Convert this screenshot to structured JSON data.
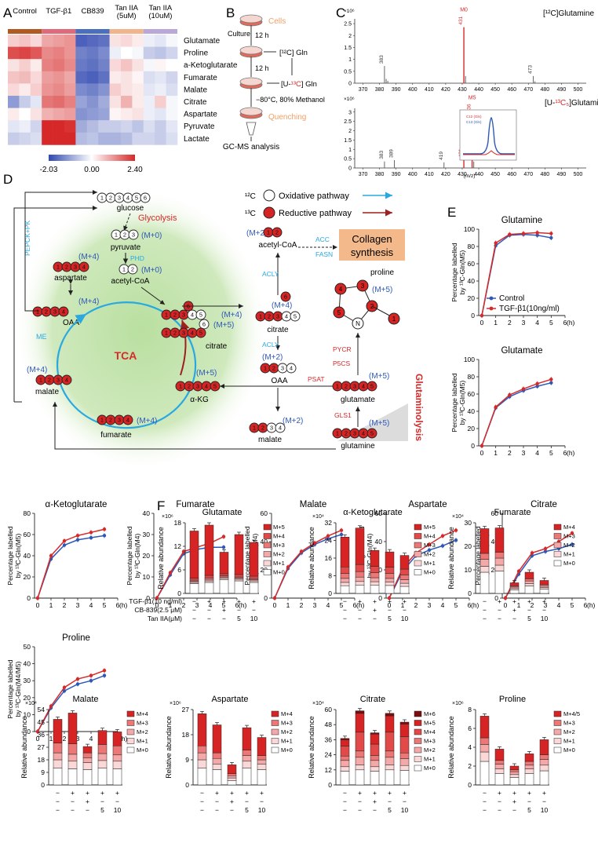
{
  "panels": {
    "A": "A",
    "B": "B",
    "C": "C",
    "D": "D",
    "E": "E",
    "F": "F"
  },
  "colors": {
    "red": "#d62a2a",
    "blue": "#2e58b8",
    "darkred": "#7a1010",
    "cyan": "#29a9e0",
    "orange": "#f0a066",
    "grey": "#b0b0b0"
  },
  "heatmap": {
    "groups": [
      {
        "label": "Control",
        "color": "#b05a22"
      },
      {
        "label": "TGF-β1",
        "color": "#e06a7a"
      },
      {
        "label": "CB839",
        "color": "#4a6fbe"
      },
      {
        "label": "Tan IIA\n(5uM)",
        "color": "#f2b48a"
      },
      {
        "label": "Tan IIA\n(10uM)",
        "color": "#b9a8d8"
      }
    ],
    "rows": [
      "Glutamate",
      "Proline",
      "a-Ketoglutarate",
      "Fumarate",
      "Malate",
      "Citrate",
      "Aspartate",
      "Pyruvate",
      "Lactate"
    ],
    "values": [
      [
        0.5,
        0.6,
        0.4,
        0.9,
        1.0,
        1.1,
        -1.9,
        -1.8,
        -1.7,
        0.3,
        0.4,
        0.2,
        -0.2,
        -0.3,
        -0.1
      ],
      [
        1.8,
        1.9,
        1.7,
        1.2,
        1.3,
        1.1,
        -1.5,
        -1.6,
        -1.4,
        -0.2,
        0.0,
        -0.1,
        -0.6,
        -0.7,
        -0.5
      ],
      [
        0.3,
        0.5,
        0.2,
        1.3,
        1.4,
        1.2,
        -1.6,
        -1.7,
        -1.5,
        0.4,
        0.6,
        0.3,
        -0.1,
        0.1,
        0.0
      ],
      [
        0.6,
        0.7,
        0.4,
        1.0,
        1.1,
        0.9,
        -1.8,
        -1.9,
        -1.7,
        0.2,
        0.3,
        0.1,
        -0.4,
        -0.3,
        -0.5
      ],
      [
        0.4,
        0.2,
        0.5,
        1.1,
        1.2,
        1.0,
        -1.4,
        -1.5,
        -1.3,
        0.5,
        0.3,
        0.2,
        -0.3,
        -0.2,
        -0.4
      ],
      [
        -1.2,
        -0.6,
        -0.3,
        1.4,
        1.5,
        1.3,
        -1.1,
        -1.3,
        -1.0,
        0.3,
        0.8,
        0.2,
        -0.2,
        0.5,
        -0.1
      ],
      [
        0.2,
        0.0,
        0.3,
        0.8,
        0.9,
        1.0,
        -1.3,
        -1.2,
        -1.1,
        0.1,
        0.2,
        0.3,
        -0.2,
        -0.3,
        -0.1
      ],
      [
        -0.3,
        -0.2,
        -0.5,
        2.2,
        2.3,
        2.1,
        -1.0,
        -0.8,
        -0.6,
        -0.6,
        -0.5,
        -0.7,
        -0.4,
        -0.6,
        -0.3
      ],
      [
        -0.6,
        -0.5,
        -0.4,
        2.3,
        2.4,
        2.2,
        -0.8,
        -0.7,
        -0.9,
        -0.9,
        -0.8,
        -0.5,
        -0.5,
        -0.6,
        -0.4
      ]
    ],
    "scale": {
      "min": "-2.03",
      "mid": "0.00",
      "max": "2.40"
    }
  },
  "workflow": {
    "cells": "Cells",
    "culture": "Culture",
    "t1": "12 h",
    "t2": "12 h",
    "gln12": "[¹²C] Gln",
    "gln13_open": "[U-",
    "gln13_iso": "¹³C",
    "gln13_close": "] Gln",
    "freeze": "−80°C, 80% Methanol",
    "quench": "Quenching",
    "analysis": "GC-MS analysis"
  },
  "ms": {
    "scale1": "×10⁶",
    "title1": "[¹²C]Glutamine",
    "scale2": "×10⁶",
    "title2_a": "[U-",
    "title2_b": "¹³C₅",
    "title2_c": "]Glutamine",
    "ticks_y1": [
      "0",
      "0.5",
      "1",
      "1.5",
      "2",
      "2.5"
    ],
    "ticks_y2": [
      "0",
      "0.5",
      "1",
      "1.5",
      "2",
      "2.5",
      "3"
    ],
    "ticks_x": [
      "370",
      "380",
      "390",
      "400",
      "410",
      "420",
      "430",
      "440",
      "450",
      "460",
      "470",
      "480",
      "490",
      "500"
    ],
    "xunit": "(m/z)",
    "peaks1": [
      {
        "mz": 383,
        "h": 0.72,
        "lab": "383"
      },
      {
        "mz": 384,
        "h": 0.18
      },
      {
        "mz": 385,
        "h": 0.1
      },
      {
        "mz": 431,
        "h": 2.35,
        "lab": "431",
        "tag": "M0"
      },
      {
        "mz": 432,
        "h": 0.3
      },
      {
        "mz": 473,
        "h": 0.3,
        "lab": "473"
      },
      {
        "mz": 474,
        "h": 0.08
      }
    ],
    "peaks2": [
      {
        "mz": 383,
        "h": 0.35,
        "lab": "383"
      },
      {
        "mz": 389,
        "h": 0.42,
        "lab": "389"
      },
      {
        "mz": 419,
        "h": 0.3,
        "lab": "419"
      },
      {
        "mz": 431,
        "h": 0.45,
        "lab": "431",
        "tag": "M0"
      },
      {
        "mz": 436,
        "h": 2.85,
        "lab": "436",
        "tag": "M5"
      },
      {
        "mz": 437,
        "h": 0.35
      }
    ],
    "inset_legend": [
      "C12 (Gln)",
      "C13 (Gln)"
    ]
  },
  "pathway": {
    "legend_12c": "¹²C",
    "legend_13c": "¹³C",
    "legend_ox": "Oxidative pathway",
    "legend_red": "Reductive pathway",
    "glucose": "glucose",
    "glycolysis": "Glycolysis",
    "pyruvate": "pyruvate",
    "acetylcoa": "acetyl-CoA",
    "m0a": "(M+0)",
    "m0b": "(M+0)",
    "phd": "PHD",
    "pepck": "PEPCK+PK",
    "me": "ME",
    "tca": "TCA",
    "aspartate": "aspartate",
    "oaa_left": "OAA",
    "malate": "malate",
    "fumarate": "fumarate",
    "akg": "α-KG",
    "citrate": "citrate",
    "m4_asp": "(M+4)",
    "m4_oaa": "(M+4)",
    "m4_mal": "(M+4)",
    "m4_fum": "(M+4)",
    "m5_akg": "(M+5)",
    "m4_cit": "(M+4)",
    "m5_cit": "(M+5)",
    "acly1": "ACLY",
    "acly2": "ACLY",
    "acc": "ACC",
    "fasn": "FASN",
    "m2_acoa": "(M+2)",
    "acoa_r": "acetyl-CoA",
    "citrate_r": "citrate",
    "m4_cit_r": "(M+4)",
    "m2_oaa_r": "(M+2)",
    "oaa_r": "OAA",
    "m2_mal_r": "(M+2)",
    "malate_r": "malate",
    "collagen": "Collagen\nsynthesis",
    "proline": "proline",
    "m5_pro": "(M+5)",
    "pycr": "PYCR",
    "p5cs": "P5CS",
    "psat": "PSAT",
    "gls1": "GLS1",
    "glutamate": "glutamate",
    "m5_glu": "(M+5)",
    "glutamine": "glutamine",
    "m5_gln": "(M+5)",
    "glutaminolysis": "Glutaminolysis",
    "n_atom": "N"
  },
  "line_charts": {
    "x": [
      0,
      1,
      2,
      3,
      4,
      5,
      6
    ],
    "xlabel_unit": "(h)",
    "legend": {
      "control": "Control",
      "tgf": "TGF-β1(10ng/ml)"
    },
    "charts": [
      {
        "id": "gln",
        "title": "Glutamine",
        "ylabel1": "Percentage labelled",
        "ylabel2": "by ¹³C-Gln(M5)",
        "ylim": [
          0,
          100
        ],
        "yticks": [
          "0",
          "20",
          "40",
          "60",
          "80",
          "100"
        ],
        "control": [
          0,
          81,
          93,
          94,
          93,
          90
        ],
        "tgf": [
          0,
          84,
          94,
          95,
          96,
          95
        ]
      },
      {
        "id": "glu",
        "title": "Glutamate",
        "ylabel1": "Percentage labelled",
        "ylabel2": "by ¹³C-Gln(M5)",
        "ylim": [
          0,
          100
        ],
        "yticks": [
          "0",
          "20",
          "40",
          "60",
          "80",
          "100"
        ],
        "control": [
          0,
          44,
          57,
          64,
          69,
          73
        ],
        "tgf": [
          0,
          45,
          59,
          66,
          72,
          77
        ]
      },
      {
        "id": "akg",
        "title": "α-Ketoglutarate",
        "ylabel1": "Percentage labelled",
        "ylabel2": "by ¹³C-Gln(M5)",
        "ylim": [
          0,
          80
        ],
        "yticks": [
          "0",
          "20",
          "40",
          "60",
          "80"
        ],
        "control": [
          0,
          37,
          50,
          55,
          57,
          59
        ],
        "tgf": [
          0,
          40,
          54,
          59,
          62,
          65
        ]
      },
      {
        "id": "fum",
        "title": "Fumarate",
        "ylabel1": "Percentage labelled",
        "ylabel2": "by ¹³C-Gln(M4)",
        "ylim": [
          0,
          40
        ],
        "yticks": [
          "0",
          "10",
          "20",
          "30",
          "40"
        ],
        "control": [
          0,
          11,
          21,
          23,
          24,
          24
        ],
        "tgf": [
          0,
          12,
          22,
          24,
          26,
          29
        ]
      },
      {
        "id": "mal",
        "title": "Malate",
        "ylabel1": "Percentage labelled",
        "ylabel2": "by ¹³C-Gln(M4)",
        "ylim": [
          0,
          60
        ],
        "yticks": [
          "0",
          "20",
          "40",
          "60"
        ],
        "control": [
          0,
          21,
          32,
          38,
          42,
          45
        ],
        "tgf": [
          0,
          22,
          33,
          39,
          44,
          48
        ]
      },
      {
        "id": "asp",
        "title": "Aspartate",
        "ylabel1": "Percentage labelled",
        "ylabel2": "by ¹³C-Gln(M4)",
        "ylim": [
          0,
          60
        ],
        "yticks": [
          "0",
          "20",
          "40",
          "60"
        ],
        "control": [
          0,
          19,
          30,
          34,
          37,
          41
        ],
        "tgf": [
          0,
          21,
          32,
          38,
          44,
          48
        ]
      },
      {
        "id": "cit",
        "title": "Citrate",
        "ylabel1": "Percentage labelled",
        "ylabel2": "by ¹³C-Gln(M4)",
        "ylim": [
          0,
          60
        ],
        "yticks": [
          "0",
          "20",
          "40",
          "60"
        ],
        "control": [
          0,
          17,
          30,
          33,
          35,
          38
        ],
        "tgf": [
          0,
          19,
          32,
          35,
          40,
          46
        ]
      },
      {
        "id": "pro",
        "title": "Proline",
        "ylabel1": "Percentage labelled",
        "ylabel2": "by ¹³C-Gln(M4/M5)",
        "ylim": [
          0,
          50
        ],
        "yticks": [
          "0",
          "10",
          "20",
          "30",
          "40",
          "50"
        ],
        "control": [
          0,
          14,
          24,
          28,
          30,
          33
        ],
        "tgf": [
          0,
          15,
          26,
          31,
          33,
          36
        ]
      }
    ]
  },
  "bar_charts": {
    "ylabel": "Relative abundance",
    "treat_labels": [
      "TGF-β1(10 ng/ml)",
      "CB-839(2.5 μM)",
      "Tan IIA(μM)"
    ],
    "treat_rows": [
      [
        "−",
        "+",
        "+",
        "+",
        "+"
      ],
      [
        "−",
        "−",
        "+",
        "−",
        "−"
      ],
      [
        "−",
        "−",
        "−",
        "5",
        "10"
      ]
    ],
    "iso_colors": [
      "#ffffff",
      "#fbd8d8",
      "#f4a8a8",
      "#ec7777",
      "#e24a4a",
      "#d62424",
      "#7a0d0d"
    ],
    "charts": [
      {
        "title": "Glutamate",
        "scale": "×10⁶",
        "ymax": 18,
        "yticks": [
          "0",
          "6",
          "12",
          "18"
        ],
        "isotopes": [
          "M+0",
          "M+1",
          "M+2",
          "M+3",
          "M+4",
          "M+5"
        ],
        "stacks": [
          [
            2.5,
            0.3,
            0.3,
            0.3,
            0.5,
            12.0
          ],
          [
            2.8,
            0.4,
            0.4,
            0.4,
            0.6,
            12.8
          ],
          [
            3.5,
            0.4,
            0.3,
            0.3,
            0.5,
            5.5
          ],
          [
            3.2,
            0.4,
            0.3,
            0.3,
            0.6,
            10.2
          ],
          [
            2.8,
            0.4,
            0.3,
            0.3,
            0.6,
            8.6
          ]
        ]
      },
      {
        "title": "α-Ketoglutarate",
        "scale": "×10⁴",
        "ymax": 32,
        "yticks": [
          "0",
          "8",
          "16",
          "24",
          "32"
        ],
        "isotopes": [
          "M+0",
          "M+1",
          "M+2",
          "M+3",
          "M+4",
          "M+5"
        ],
        "stacks": [
          [
            3.5,
            1.5,
            1.8,
            2.2,
            3.0,
            13.5
          ],
          [
            3.8,
            1.6,
            2.0,
            2.5,
            3.2,
            16.5
          ],
          [
            3.8,
            1.5,
            1.8,
            2.3,
            2.8,
            7.3
          ],
          [
            3.6,
            1.5,
            1.7,
            2.3,
            2.8,
            6.9
          ],
          [
            3.2,
            1.4,
            1.6,
            2.2,
            2.6,
            6.2
          ]
        ]
      },
      {
        "title": "Fumarate",
        "scale": "×10⁴",
        "ymax": 30,
        "yticks": [
          "0",
          "10",
          "20",
          "30"
        ],
        "isotopes": [
          "M+0",
          "M+1",
          "M+2",
          "M+3",
          "M+4"
        ],
        "stacks": [
          [
            9.0,
            2.5,
            3.0,
            2.5,
            10.5
          ],
          [
            9.5,
            2.5,
            3.0,
            2.5,
            10.3
          ],
          [
            1.5,
            0.6,
            0.6,
            0.5,
            1.3
          ],
          [
            3.2,
            1.0,
            1.1,
            0.9,
            2.8
          ],
          [
            1.8,
            0.7,
            0.7,
            0.6,
            1.7
          ]
        ]
      },
      {
        "title": "Malate",
        "scale": "×10⁴",
        "ymax": 54,
        "yticks": [
          "0",
          "9",
          "18",
          "27",
          "36",
          "45",
          "54"
        ],
        "isotopes": [
          "M+0",
          "M+1",
          "M+2",
          "M+3",
          "M+4"
        ],
        "stacks": [
          [
            12.0,
            6.0,
            5.0,
            7.0,
            17.0
          ],
          [
            11.5,
            5.5,
            5.0,
            7.5,
            22.0
          ],
          [
            11.0,
            5.0,
            3.5,
            3.5,
            4.5
          ],
          [
            12.0,
            5.5,
            5.0,
            6.5,
            10.0
          ],
          [
            11.5,
            5.5,
            4.5,
            6.5,
            10.0
          ]
        ]
      },
      {
        "title": "Aspartate",
        "scale": "×10⁶",
        "ymax": 27,
        "yticks": [
          "0",
          "9",
          "18",
          "27"
        ],
        "isotopes": [
          "M+0",
          "M+1",
          "M+2",
          "M+3",
          "M+4"
        ],
        "stacks": [
          [
            6.0,
            3.0,
            2.5,
            2.5,
            11.5
          ],
          [
            5.5,
            2.0,
            2.0,
            2.0,
            10.0
          ],
          [
            1.5,
            1.0,
            0.8,
            0.7,
            3.2
          ],
          [
            6.0,
            2.5,
            2.0,
            2.0,
            8.0
          ],
          [
            5.5,
            2.0,
            1.5,
            1.5,
            6.5
          ]
        ]
      },
      {
        "title": "Citrate",
        "scale": "×10⁴",
        "ymax": 60,
        "yticks": [
          "0",
          "12",
          "24",
          "36",
          "48",
          "60"
        ],
        "isotopes": [
          "M+0",
          "M+1",
          "M+2",
          "M+3",
          "M+4",
          "M+5",
          "M+6"
        ],
        "stacks": [
          [
            11.0,
            3.5,
            5.0,
            3.5,
            8.0,
            5.0,
            1.0
          ],
          [
            12.0,
            4.0,
            6.0,
            5.0,
            15.0,
            15.0,
            2.0
          ],
          [
            11.0,
            3.5,
            5.0,
            4.0,
            9.0,
            8.0,
            1.0
          ],
          [
            12.0,
            4.0,
            6.0,
            5.0,
            15.0,
            13.0,
            2.0
          ],
          [
            11.5,
            4.0,
            5.5,
            4.5,
            13.0,
            10.0,
            1.5
          ]
        ]
      },
      {
        "title": "Proline",
        "scale": "×10⁶",
        "ymax": 8,
        "yticks": [
          "0",
          "2",
          "4",
          "6",
          "8"
        ],
        "isotopes": [
          "M+0",
          "M+1",
          "M+2",
          "M+3",
          "M+4/5"
        ],
        "stacks": [
          [
            2.5,
            1.0,
            0.8,
            0.7,
            2.3
          ],
          [
            1.2,
            0.5,
            0.5,
            0.4,
            1.2
          ],
          [
            0.8,
            0.3,
            0.3,
            0.2,
            0.4
          ],
          [
            1.2,
            0.5,
            0.4,
            0.4,
            0.8
          ],
          [
            1.5,
            0.6,
            0.6,
            0.5,
            1.6
          ]
        ]
      }
    ]
  }
}
